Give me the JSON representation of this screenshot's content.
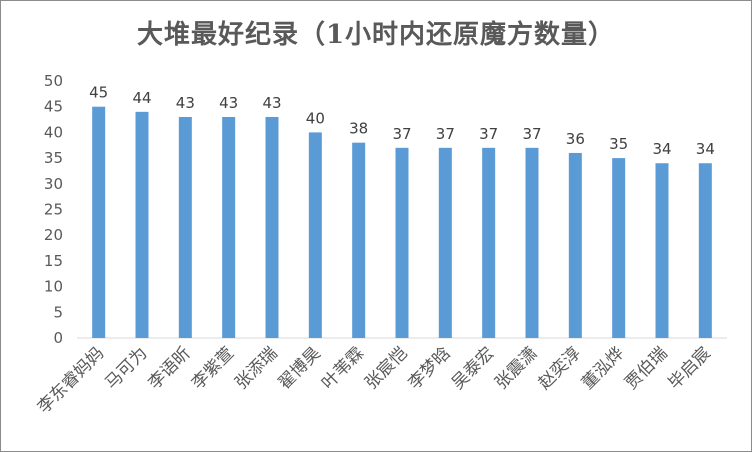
{
  "chart_data": {
    "type": "bar",
    "title": "大堆最好纪录（1小时内还原魔方数量）",
    "categories": [
      "李东睿妈妈",
      "马可为",
      "李语昕",
      "李紫萱",
      "张添瑞",
      "翟博昊",
      "叶苇霖",
      "张宸恺",
      "李梦晗",
      "吴泰宏",
      "张震潇",
      "赵奕淳",
      "董泓烨",
      "贾伯瑞",
      "毕启宸"
    ],
    "values": [
      45,
      44,
      43,
      43,
      43,
      40,
      38,
      37,
      37,
      37,
      37,
      36,
      35,
      34,
      34
    ],
    "ylim": [
      0,
      50
    ],
    "yticks": [
      0,
      5,
      10,
      15,
      20,
      25,
      30,
      35,
      40,
      45,
      50
    ],
    "xlabel": "",
    "ylabel": "",
    "grid": false,
    "bar_color": "#5b9bd5"
  }
}
